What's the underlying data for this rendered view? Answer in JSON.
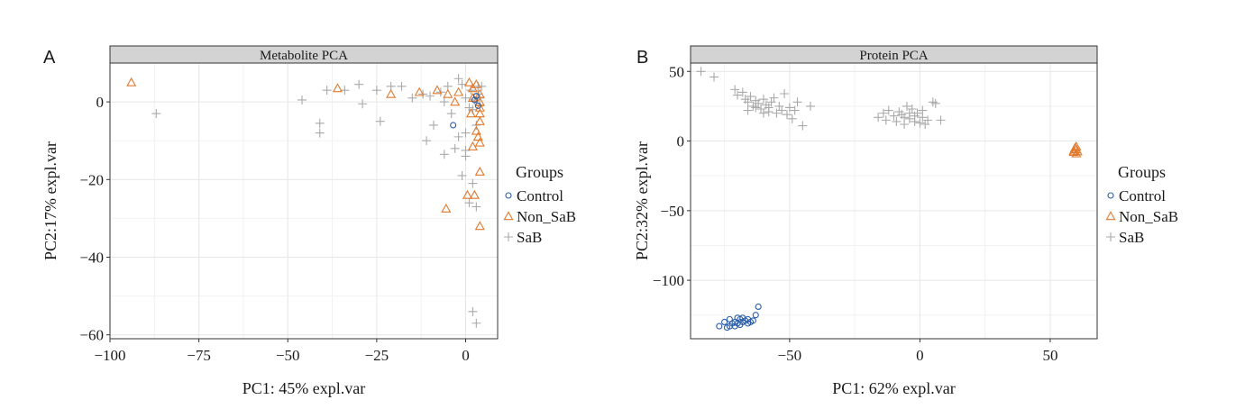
{
  "colors": {
    "Control": "#2b5ea8",
    "Non_SaB": "#e07a2f",
    "SaB": "#a9a9a9",
    "strip_bg": "#d3d3d3",
    "grid_major": "#e6e6e6",
    "grid_minor": "#f2f2f2"
  },
  "chart_data": [
    {
      "panel": "A",
      "type": "scatter",
      "title": "Metabolite PCA",
      "xlabel": "PC1: 45% expl.var",
      "ylabel": "PC2:17% expl.var",
      "xlim": [
        -100,
        9
      ],
      "ylim": [
        -61,
        10
      ],
      "xticks": [
        -100,
        -75,
        -50,
        -25,
        0
      ],
      "yticks": [
        0,
        -20,
        -40,
        -60
      ],
      "grid": true,
      "legend_title": "Groups",
      "legend_position": "right",
      "series": [
        {
          "name": "Control",
          "marker": "circle",
          "points": [
            [
              -3.5,
              -6
            ],
            [
              2.5,
              0.5
            ],
            [
              3.5,
              -1
            ],
            [
              3,
              1.5
            ]
          ]
        },
        {
          "name": "Non_SaB",
          "marker": "triangle",
          "points": [
            [
              -94,
              5
            ],
            [
              -36,
              3.5
            ],
            [
              -21,
              2
            ],
            [
              -13,
              2.5
            ],
            [
              -8,
              3
            ],
            [
              -5,
              2
            ],
            [
              -3,
              0
            ],
            [
              -2,
              2.5
            ],
            [
              1,
              5
            ],
            [
              2,
              3.5
            ],
            [
              3,
              4.5
            ],
            [
              4,
              2
            ],
            [
              4,
              0
            ],
            [
              4,
              -1.5
            ],
            [
              4,
              -3
            ],
            [
              4,
              -5
            ],
            [
              3,
              -7.5
            ],
            [
              3.5,
              -9
            ],
            [
              4,
              -10.5
            ],
            [
              2,
              -11.5
            ],
            [
              4,
              -18
            ],
            [
              0.5,
              -24
            ],
            [
              2.5,
              -24
            ],
            [
              -5.5,
              -27.5
            ],
            [
              4,
              -32
            ],
            [
              1.5,
              -3
            ],
            [
              2,
              1
            ]
          ]
        },
        {
          "name": "SaB",
          "marker": "plus",
          "points": [
            [
              -87,
              -3
            ],
            [
              -46,
              0.5
            ],
            [
              -41,
              -5.5
            ],
            [
              -41,
              -8
            ],
            [
              -39,
              3
            ],
            [
              -34,
              3
            ],
            [
              -30,
              4.5
            ],
            [
              -29,
              -0.5
            ],
            [
              -25,
              3
            ],
            [
              -24,
              -5
            ],
            [
              -21,
              4
            ],
            [
              -18,
              4
            ],
            [
              -15,
              1
            ],
            [
              -12,
              2
            ],
            [
              -11,
              -10
            ],
            [
              -10,
              1.5
            ],
            [
              -9,
              -6
            ],
            [
              -7,
              2.5
            ],
            [
              -6,
              0
            ],
            [
              -5,
              4
            ],
            [
              -4,
              -3
            ],
            [
              -3,
              -12
            ],
            [
              -2,
              6
            ],
            [
              -1,
              4.5
            ],
            [
              0,
              1
            ],
            [
              1,
              -1.5
            ],
            [
              1.5,
              3
            ],
            [
              2,
              -2
            ],
            [
              2.5,
              0.5
            ],
            [
              3,
              -6
            ],
            [
              3.5,
              2
            ],
            [
              4,
              -1
            ],
            [
              4.5,
              4
            ],
            [
              -1,
              -19
            ],
            [
              0,
              -14
            ],
            [
              1,
              -26
            ],
            [
              2,
              -21
            ],
            [
              3,
              -27
            ],
            [
              2,
              -54
            ],
            [
              3,
              -57
            ],
            [
              0,
              -8
            ],
            [
              -2,
              -9
            ],
            [
              -6,
              -13.5
            ],
            [
              0,
              -12.5
            ],
            [
              4,
              1
            ],
            [
              3.5,
              4
            ]
          ]
        }
      ]
    },
    {
      "panel": "B",
      "type": "scatter",
      "title": "Protein PCA",
      "xlabel": "PC1: 62% expl.var",
      "ylabel": "PC2:32% expl.var",
      "xlim": [
        -88,
        68
      ],
      "ylim": [
        -142,
        56
      ],
      "xticks": [
        -50,
        0,
        50
      ],
      "yticks": [
        50,
        0,
        -50,
        -100
      ],
      "grid": true,
      "legend_title": "Groups",
      "legend_position": "right",
      "series": [
        {
          "name": "Control",
          "marker": "circle",
          "points": [
            [
              -77,
              -133
            ],
            [
              -75,
              -130
            ],
            [
              -74,
              -134
            ],
            [
              -73,
              -133
            ],
            [
              -72,
              -131
            ],
            [
              -71,
              -133
            ],
            [
              -71,
              -130
            ],
            [
              -70,
              -127
            ],
            [
              -70,
              -131
            ],
            [
              -69,
              -128
            ],
            [
              -69,
              -132
            ],
            [
              -68,
              -130
            ],
            [
              -68,
              -127
            ],
            [
              -67,
              -129
            ],
            [
              -66,
              -131
            ],
            [
              -66,
              -128
            ],
            [
              -64,
              -129
            ],
            [
              -63,
              -125
            ],
            [
              -62,
              -119
            ],
            [
              -73,
              -128
            ],
            [
              -65,
              -130
            ]
          ]
        },
        {
          "name": "Non_SaB",
          "marker": "triangle",
          "points": [
            [
              59,
              -7
            ],
            [
              60,
              -6
            ],
            [
              59.5,
              -5
            ],
            [
              60.5,
              -7.5
            ],
            [
              59,
              -8
            ],
            [
              60,
              -9
            ],
            [
              60,
              -4
            ]
          ]
        },
        {
          "name": "SaB",
          "marker": "plus",
          "points": [
            [
              -84,
              50
            ],
            [
              -79,
              46
            ],
            [
              -71,
              37
            ],
            [
              -70,
              33
            ],
            [
              -68,
              35
            ],
            [
              -67,
              30
            ],
            [
              -66,
              28
            ],
            [
              -65,
              32
            ],
            [
              -64,
              25
            ],
            [
              -63,
              29
            ],
            [
              -62,
              27
            ],
            [
              -61,
              23
            ],
            [
              -60,
              30
            ],
            [
              -59,
              26
            ],
            [
              -58,
              21
            ],
            [
              -57,
              28
            ],
            [
              -56,
              31
            ],
            [
              -55,
              20
            ],
            [
              -54,
              25
            ],
            [
              -53,
              22
            ],
            [
              -52,
              34
            ],
            [
              -51,
              19
            ],
            [
              -50,
              24
            ],
            [
              -49,
              16
            ],
            [
              -48,
              22
            ],
            [
              -47,
              28
            ],
            [
              -45,
              11
            ],
            [
              -42,
              25
            ],
            [
              -63,
              24
            ],
            [
              -60,
              20
            ],
            [
              -58,
              24
            ],
            [
              -66,
              22
            ],
            [
              -16,
              17
            ],
            [
              -14,
              20
            ],
            [
              -13,
              15
            ],
            [
              -12,
              22
            ],
            [
              -10,
              18
            ],
            [
              -9,
              14
            ],
            [
              -8,
              21
            ],
            [
              -7,
              19
            ],
            [
              -6,
              12
            ],
            [
              -5,
              25
            ],
            [
              -4,
              16
            ],
            [
              -3,
              23
            ],
            [
              -2,
              18
            ],
            [
              -1,
              20
            ],
            [
              0,
              13
            ],
            [
              1,
              17
            ],
            [
              3,
              15
            ],
            [
              6,
              27
            ],
            [
              8,
              15
            ],
            [
              -4,
              20
            ],
            [
              -2,
              14
            ],
            [
              1,
              22
            ],
            [
              -6,
              17
            ],
            [
              2,
              12
            ],
            [
              5,
              28
            ]
          ]
        }
      ]
    }
  ],
  "panels": [
    {
      "letter": "A"
    },
    {
      "letter": "B"
    }
  ]
}
